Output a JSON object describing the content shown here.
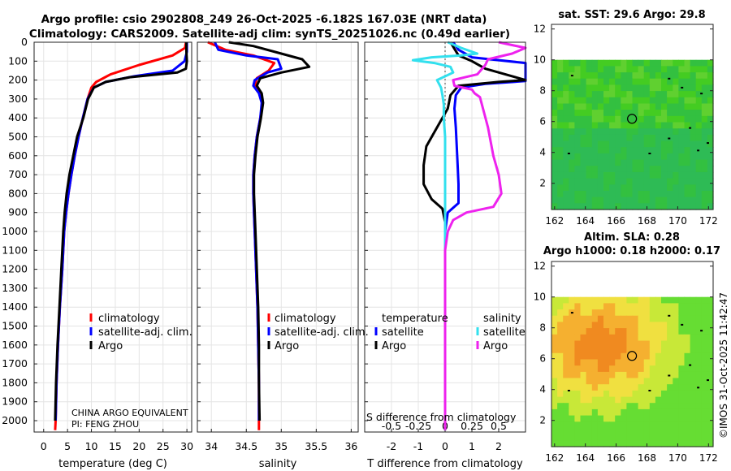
{
  "header": {
    "title_line1": "Argo profile: csio 2902808_249 26-Oct-2025 -6.182S 167.03E (NRT data)",
    "title_line2": "Climatology: CARS2009. Satellite-adj clim: synTS_20251026.nc (0.49d earlier)"
  },
  "side_label": "©IMOS 31-Oct-2025 11:42:47",
  "depth_ticks": [
    0,
    100,
    200,
    300,
    400,
    500,
    600,
    700,
    800,
    900,
    1000,
    1100,
    1200,
    1300,
    1400,
    1500,
    1600,
    1700,
    1800,
    1900,
    2000
  ],
  "depth_ticks_text": [
    "0",
    "100",
    "200",
    "300",
    "400",
    "500",
    "600",
    "700",
    "800",
    "900",
    "1000",
    "1100",
    "1200",
    "1300",
    "1400",
    "1500",
    "1600",
    "1700",
    "1800",
    "1900",
    "2000"
  ],
  "colors": {
    "climatology": "#ff0000",
    "satellite": "#0000ff",
    "argo": "#000000",
    "sat_salinity": "#33e0ee",
    "argo_salinity": "#ee22ee"
  },
  "chart_data": [
    {
      "type": "line",
      "id": "temperature",
      "xlabel": "temperature (deg C)",
      "xlim": [
        -2,
        31
      ],
      "xticks": [
        0,
        5,
        10,
        15,
        20,
        25,
        30
      ],
      "xticks_text": [
        "0",
        "5",
        "10",
        "15",
        "20",
        "25",
        "30"
      ],
      "ylim": [
        0,
        2060
      ],
      "legend": [
        "climatology",
        "satellite-adj. clim.",
        "Argo"
      ],
      "footnote1": "CHINA ARGO EQUIVALENT",
      "footnote2": "PI: FENG ZHOU",
      "series": [
        {
          "name": "climatology",
          "color": "#ff0000",
          "points": [
            [
              29.8,
              0
            ],
            [
              29.6,
              30
            ],
            [
              27,
              70
            ],
            [
              20,
              120
            ],
            [
              14,
              170
            ],
            [
              11,
              210
            ],
            [
              10,
              240
            ],
            [
              9.2,
              300
            ],
            [
              8.2,
              400
            ],
            [
              7.3,
              500
            ],
            [
              6.5,
              600
            ],
            [
              5.8,
              700
            ],
            [
              5.2,
              800
            ],
            [
              4.7,
              900
            ],
            [
              4.3,
              1000
            ],
            [
              3.9,
              1200
            ],
            [
              3.4,
              1400
            ],
            [
              3,
              1600
            ],
            [
              2.7,
              1800
            ],
            [
              2.5,
              2000
            ],
            [
              2.4,
              2050
            ]
          ]
        },
        {
          "name": "satellite-adj. clim.",
          "color": "#0000ff",
          "points": [
            [
              30,
              0
            ],
            [
              30,
              50
            ],
            [
              29.5,
              100
            ],
            [
              27,
              150
            ],
            [
              19,
              180
            ],
            [
              13,
              210
            ],
            [
              10.5,
              240
            ],
            [
              9.2,
              300
            ],
            [
              8.2,
              400
            ],
            [
              7.3,
              500
            ],
            [
              6.5,
              600
            ],
            [
              5.8,
              700
            ],
            [
              5.2,
              800
            ],
            [
              4.7,
              900
            ],
            [
              4.3,
              1000
            ],
            [
              3.9,
              1200
            ],
            [
              3.4,
              1400
            ],
            [
              3,
              1600
            ],
            [
              2.7,
              1800
            ],
            [
              2.5,
              2000
            ]
          ]
        },
        {
          "name": "Argo",
          "color": "#000000",
          "points": [
            [
              29.9,
              0
            ],
            [
              29.9,
              50
            ],
            [
              30,
              100
            ],
            [
              29.8,
              140
            ],
            [
              28,
              160
            ],
            [
              18,
              185
            ],
            [
              13,
              210
            ],
            [
              10.5,
              240
            ],
            [
              9.3,
              300
            ],
            [
              8.3,
              400
            ],
            [
              7,
              500
            ],
            [
              6.2,
              600
            ],
            [
              5.4,
              700
            ],
            [
              4.8,
              800
            ],
            [
              4.4,
              900
            ],
            [
              4.1,
              1000
            ],
            [
              3.7,
              1200
            ],
            [
              3.3,
              1400
            ],
            [
              2.9,
              1600
            ],
            [
              2.6,
              1800
            ],
            [
              2.4,
              2000
            ]
          ]
        }
      ]
    },
    {
      "type": "line",
      "id": "salinity",
      "xlabel": "salinity",
      "xlim": [
        33.8,
        36.1
      ],
      "xticks": [
        34,
        34.5,
        35,
        35.5,
        36
      ],
      "xticks_text": [
        "34",
        "34.5",
        "35",
        "35.5",
        "36"
      ],
      "ylim": [
        0,
        2060
      ],
      "legend": [
        "climatology",
        "satellite-adj. clim.",
        "Argo"
      ],
      "series": [
        {
          "name": "climatology",
          "color": "#ff0000",
          "points": [
            [
              33.95,
              0
            ],
            [
              34.2,
              40
            ],
            [
              34.6,
              70
            ],
            [
              34.9,
              110
            ],
            [
              34.82,
              150
            ],
            [
              34.65,
              190
            ],
            [
              34.62,
              230
            ],
            [
              34.7,
              270
            ],
            [
              34.73,
              320
            ],
            [
              34.7,
              400
            ],
            [
              34.65,
              500
            ],
            [
              34.62,
              600
            ],
            [
              34.6,
              700
            ],
            [
              34.6,
              800
            ],
            [
              34.61,
              900
            ],
            [
              34.62,
              1000
            ],
            [
              34.64,
              1200
            ],
            [
              34.66,
              1400
            ],
            [
              34.67,
              1600
            ],
            [
              34.68,
              1800
            ],
            [
              34.68,
              2000
            ],
            [
              34.68,
              2050
            ]
          ]
        },
        {
          "name": "satellite-adj. clim.",
          "color": "#0000ff",
          "points": [
            [
              34.05,
              0
            ],
            [
              34.1,
              40
            ],
            [
              34.5,
              70
            ],
            [
              34.95,
              90
            ],
            [
              35,
              140
            ],
            [
              34.8,
              160
            ],
            [
              34.62,
              200
            ],
            [
              34.6,
              230
            ],
            [
              34.68,
              270
            ],
            [
              34.72,
              320
            ],
            [
              34.7,
              400
            ],
            [
              34.65,
              500
            ],
            [
              34.62,
              600
            ],
            [
              34.6,
              700
            ],
            [
              34.6,
              800
            ],
            [
              34.61,
              900
            ],
            [
              34.62,
              1000
            ],
            [
              34.64,
              1200
            ],
            [
              34.66,
              1400
            ],
            [
              34.67,
              1600
            ],
            [
              34.68,
              1800
            ],
            [
              34.68,
              2000
            ]
          ]
        },
        {
          "name": "Argo",
          "color": "#000000",
          "points": [
            [
              34.25,
              0
            ],
            [
              34.6,
              20
            ],
            [
              35,
              60
            ],
            [
              35.3,
              90
            ],
            [
              35.4,
              130
            ],
            [
              35,
              160
            ],
            [
              34.7,
              190
            ],
            [
              34.65,
              230
            ],
            [
              34.72,
              270
            ],
            [
              34.74,
              320
            ],
            [
              34.71,
              400
            ],
            [
              34.66,
              500
            ],
            [
              34.63,
              600
            ],
            [
              34.61,
              700
            ],
            [
              34.61,
              800
            ],
            [
              34.62,
              900
            ],
            [
              34.63,
              1000
            ],
            [
              34.65,
              1200
            ],
            [
              34.67,
              1400
            ],
            [
              34.68,
              1600
            ],
            [
              34.68,
              1800
            ],
            [
              34.69,
              2000
            ]
          ]
        }
      ]
    },
    {
      "type": "line",
      "id": "difference",
      "xlabel": "T difference from climatology",
      "xlabel_top": "S difference from climatology",
      "xlim": [
        -3,
        3
      ],
      "xticks": [
        -2,
        -1,
        0,
        1,
        2
      ],
      "xticks_text": [
        "-2",
        "-1",
        "0",
        "1",
        "2"
      ],
      "s_ticks": [
        -0.5,
        -0.25,
        0,
        0.25,
        0.5
      ],
      "s_ticks_text": [
        "-0.5",
        "-0.25",
        "0",
        "0.25",
        "0.5"
      ],
      "ylim": [
        0,
        2060
      ],
      "legend_temperature_title": "temperature",
      "legend_salinity_title": "salinity",
      "legend_satellite": "satellite",
      "legend_argo": "Argo",
      "series": [
        {
          "name": "T satellite",
          "color": "#0000ff",
          "points": [
            [
              0.3,
              0
            ],
            [
              0.5,
              40
            ],
            [
              1,
              80
            ],
            [
              3,
              110
            ],
            [
              3,
              150
            ],
            [
              3,
              205
            ],
            [
              1.5,
              220
            ],
            [
              0.6,
              240
            ],
            [
              0.4,
              280
            ],
            [
              0.35,
              350
            ],
            [
              0.4,
              450
            ],
            [
              0.45,
              600
            ],
            [
              0.5,
              750
            ],
            [
              0.5,
              850
            ],
            [
              0.1,
              900
            ],
            [
              0,
              1000
            ],
            [
              0,
              2050
            ]
          ]
        },
        {
          "name": "T Argo",
          "color": "#000000",
          "points": [
            [
              0.2,
              0
            ],
            [
              0.5,
              70
            ],
            [
              1,
              100
            ],
            [
              1.5,
              140
            ],
            [
              3,
              200
            ],
            [
              2,
              210
            ],
            [
              0.5,
              230
            ],
            [
              0.2,
              280
            ],
            [
              0.1,
              350
            ],
            [
              -0.3,
              450
            ],
            [
              -0.7,
              550
            ],
            [
              -0.8,
              650
            ],
            [
              -0.8,
              750
            ],
            [
              -0.5,
              830
            ],
            [
              -0.1,
              880
            ],
            [
              0,
              950
            ],
            [
              0,
              1050
            ],
            [
              0,
              2050
            ]
          ]
        },
        {
          "name": "S satellite",
          "color": "#33e0ee",
          "points": [
            [
              0.1,
              0
            ],
            [
              0.6,
              30
            ],
            [
              1.2,
              60
            ],
            [
              0.6,
              70
            ],
            [
              -0.5,
              80
            ],
            [
              -1.2,
              95
            ],
            [
              -0.4,
              110
            ],
            [
              0.2,
              130
            ],
            [
              0.3,
              160
            ],
            [
              -0.3,
              200
            ],
            [
              -0.15,
              240
            ],
            [
              -0.1,
              280
            ],
            [
              -0.05,
              330
            ],
            [
              -0.05,
              400
            ],
            [
              0,
              500
            ],
            [
              0,
              2050
            ]
          ]
        },
        {
          "name": "S Argo",
          "color": "#ee22ee",
          "points": [
            [
              2,
              0
            ],
            [
              3,
              30
            ],
            [
              2.5,
              60
            ],
            [
              1.6,
              90
            ],
            [
              1.5,
              120
            ],
            [
              1.2,
              170
            ],
            [
              0.3,
              200
            ],
            [
              0.35,
              230
            ],
            [
              1,
              250
            ],
            [
              1.1,
              270
            ],
            [
              1.3,
              290
            ],
            [
              1.6,
              450
            ],
            [
              1.8,
              600
            ],
            [
              2,
              700
            ],
            [
              2.1,
              800
            ],
            [
              1.8,
              870
            ],
            [
              0.8,
              900
            ],
            [
              0.3,
              940
            ],
            [
              0.1,
              1000
            ],
            [
              0,
              1100
            ],
            [
              0,
              2050
            ]
          ]
        }
      ]
    },
    {
      "type": "heatmap",
      "id": "sst_map",
      "title": "sat. SST: 29.6 Argo: 29.8",
      "xlim": [
        161.8,
        172.3
      ],
      "ylim": [
        0.3,
        12.3
      ],
      "xticks": [
        162,
        164,
        166,
        168,
        170,
        172
      ],
      "xticks_text": [
        "162",
        "164",
        "166",
        "168",
        "170",
        "172"
      ],
      "yticks": [
        2,
        4,
        6,
        8,
        10,
        12
      ],
      "yticks_text": [
        "2",
        "4",
        "6",
        "8",
        "10",
        "12"
      ],
      "data_top": 10,
      "profile_location": [
        167.03,
        6.18
      ],
      "colors": [
        "#44cc22",
        "#33c040",
        "#2ebb55",
        "#60d030"
      ]
    },
    {
      "type": "heatmap",
      "id": "sla_map",
      "title_line1": "Altim. SLA: 0.28",
      "title_line2": "Argo h1000: 0.18 h2000: 0.17",
      "xlim": [
        161.8,
        172.3
      ],
      "ylim": [
        0.3,
        12.3
      ],
      "xticks": [
        162,
        164,
        166,
        168,
        170,
        172
      ],
      "xticks_text": [
        "162",
        "164",
        "166",
        "168",
        "170",
        "172"
      ],
      "yticks": [
        2,
        4,
        6,
        8,
        10,
        12
      ],
      "yticks_text": [
        "2",
        "4",
        "6",
        "8",
        "10",
        "12"
      ],
      "data_top": 10,
      "profile_location": [
        167.03,
        6.18
      ],
      "colors": [
        "#f08a20",
        "#f5b030",
        "#f0e040",
        "#c8e838",
        "#66dd33"
      ]
    }
  ]
}
